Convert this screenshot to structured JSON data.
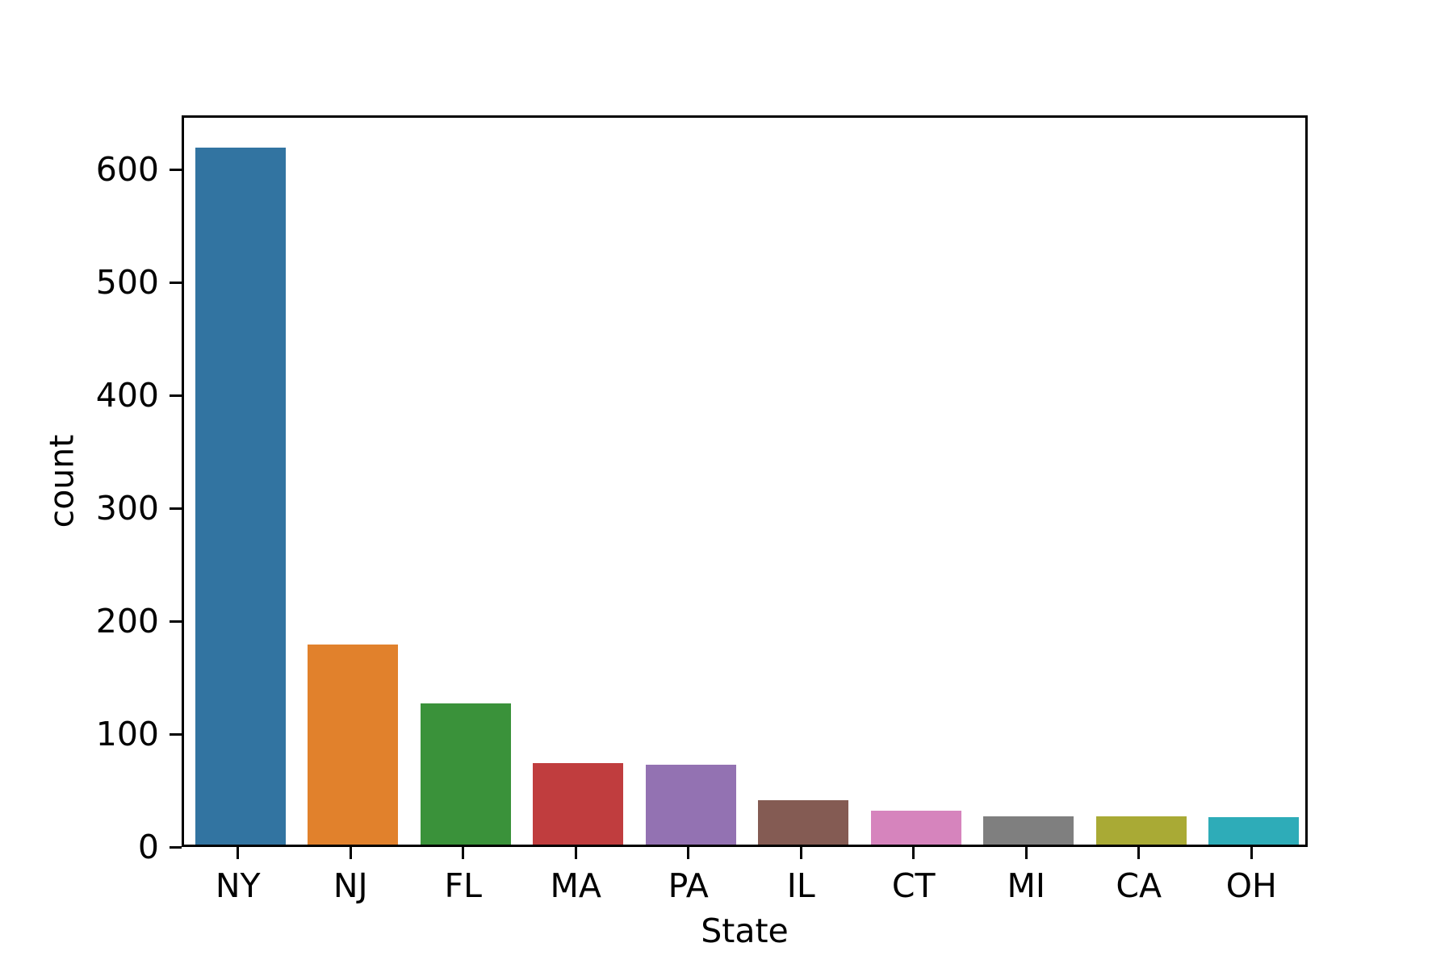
{
  "chart_data": {
    "type": "bar",
    "title": "",
    "xlabel": "State",
    "ylabel": "count",
    "categories": [
      "NY",
      "NJ",
      "FL",
      "MA",
      "PA",
      "IL",
      "CT",
      "MI",
      "CA",
      "OH"
    ],
    "values": [
      617,
      177,
      125,
      72,
      71,
      39,
      30,
      25,
      25,
      24
    ],
    "bar_colors": [
      "#3274a1",
      "#e1812c",
      "#3a923a",
      "#c03d3e",
      "#9372b2",
      "#845b53",
      "#d684bd",
      "#7f7f7f",
      "#a9aa35",
      "#2eacb8"
    ],
    "ylim": [
      0,
      648
    ],
    "yticks": [
      0,
      100,
      200,
      300,
      400,
      500,
      600
    ],
    "grid": false,
    "legend": "none",
    "background_color": "#ffffff",
    "spine_color": "#000000",
    "text_color": "#000000",
    "bar_width_fraction": 0.8
  }
}
